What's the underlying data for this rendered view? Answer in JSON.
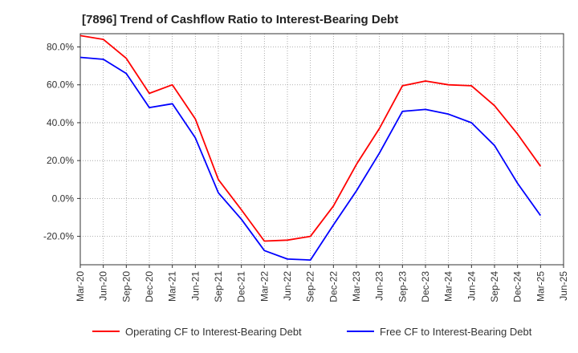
{
  "chart_data": {
    "type": "line",
    "title": "[7896]  Trend of Cashflow Ratio to Interest-Bearing Debt",
    "xlabel": "",
    "ylabel": "",
    "x_categories": [
      "Mar-20",
      "Jun-20",
      "Sep-20",
      "Dec-20",
      "Mar-21",
      "Jun-21",
      "Sep-21",
      "Dec-21",
      "Mar-22",
      "Jun-22",
      "Sep-22",
      "Dec-22",
      "Mar-23",
      "Jun-23",
      "Sep-23",
      "Dec-23",
      "Mar-24",
      "Jun-24",
      "Sep-24",
      "Dec-24",
      "Mar-25",
      "Jun-25"
    ],
    "y_ticks": [
      -20,
      0,
      20,
      40,
      60,
      80
    ],
    "y_tick_labels": [
      "-20.0%",
      "0.0%",
      "20.0%",
      "40.0%",
      "60.0%",
      "80.0%"
    ],
    "ylim": [
      -35,
      87
    ],
    "grid": true,
    "legend_position": "bottom",
    "series": [
      {
        "name": "Operating CF to Interest-Bearing Debt",
        "color": "#ff0000",
        "values": [
          86,
          84,
          74,
          55.5,
          60,
          42,
          10,
          -6,
          -22.5,
          -22,
          -20,
          -4,
          18,
          37,
          59.5,
          62,
          60,
          59.5,
          49,
          34,
          17,
          null
        ]
      },
      {
        "name": "Free CF to Interest-Bearing Debt",
        "color": "#0000ff",
        "values": [
          74.5,
          73.5,
          66,
          48,
          50,
          32,
          3,
          -11,
          -27.5,
          -32,
          -32.5,
          -14,
          4,
          24,
          46,
          47,
          44.5,
          40,
          28,
          8,
          -9,
          null
        ]
      }
    ]
  }
}
